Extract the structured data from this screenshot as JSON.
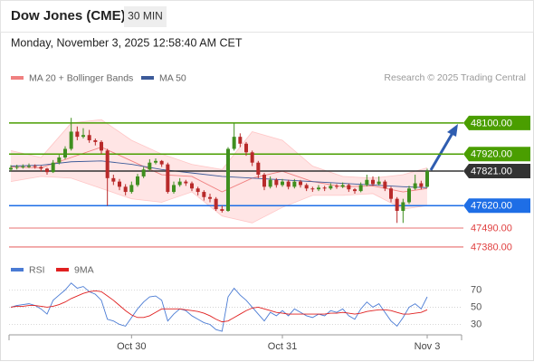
{
  "chart_data": {
    "type": "candlestick",
    "title": "Dow Jones (CME)",
    "timeframe": "30 MIN",
    "date": "Monday, November 3, 2025 12:58:40 AM CET",
    "legend": [
      {
        "name": "MA 20 + Bollinger Bands",
        "color": "#f08080"
      },
      {
        "name": "MA 50",
        "color": "#3c5a99"
      }
    ],
    "credit": "Research © 2025 Trading Central",
    "xlim": [
      -0.3,
      74.7
    ],
    "ylim": [
      47343,
      48210
    ],
    "xticks": [
      {
        "value": 20,
        "label": "Oct 30"
      },
      {
        "value": 45,
        "label": "Oct 31"
      },
      {
        "value": 69,
        "label": "Nov 3"
      }
    ],
    "levels": [
      {
        "value": 48100,
        "label": "48100.00",
        "color": "#4a9e00",
        "box": true
      },
      {
        "value": 47920,
        "label": "47920.00",
        "color": "#4a9e00",
        "box": true
      },
      {
        "value": 47821,
        "label": "47821.00",
        "color": "#333333",
        "box": true
      },
      {
        "value": 47620,
        "label": "47620.00",
        "color": "#1e6ee6",
        "box": true
      },
      {
        "value": 47490,
        "label": "47490.00",
        "color": "#e04040",
        "box": false
      },
      {
        "value": 47380,
        "label": "47380.00",
        "color": "#e04040",
        "box": false
      }
    ],
    "ohlc": [
      [
        47830,
        47855,
        47820,
        47840
      ],
      [
        47840,
        47858,
        47830,
        47845
      ],
      [
        47845,
        47860,
        47835,
        47848
      ],
      [
        47848,
        47865,
        47838,
        47850
      ],
      [
        47850,
        47860,
        47835,
        47845
      ],
      [
        47845,
        47852,
        47820,
        47835
      ],
      [
        47835,
        47840,
        47800,
        47815
      ],
      [
        47815,
        47885,
        47810,
        47870
      ],
      [
        47870,
        47915,
        47860,
        47900
      ],
      [
        47900,
        47965,
        47890,
        47950
      ],
      [
        47950,
        48130,
        47940,
        48050
      ],
      [
        48050,
        48080,
        48000,
        48020
      ],
      [
        48020,
        48070,
        48010,
        48030
      ],
      [
        48030,
        48060,
        47985,
        48000
      ],
      [
        48000,
        48010,
        47970,
        47990
      ],
      [
        47990,
        48000,
        47920,
        47940
      ],
      [
        47940,
        47950,
        47620,
        47780
      ],
      [
        47780,
        47800,
        47740,
        47760
      ],
      [
        47760,
        47775,
        47710,
        47730
      ],
      [
        47730,
        47745,
        47680,
        47700
      ],
      [
        47700,
        47760,
        47690,
        47740
      ],
      [
        47740,
        47805,
        47730,
        47790
      ],
      [
        47790,
        47845,
        47780,
        47830
      ],
      [
        47830,
        47890,
        47820,
        47870
      ],
      [
        47870,
        47895,
        47860,
        47880
      ],
      [
        47880,
        47885,
        47845,
        47860
      ],
      [
        47860,
        47870,
        47690,
        47700
      ],
      [
        47700,
        47760,
        47690,
        47740
      ],
      [
        47740,
        47780,
        47730,
        47760
      ],
      [
        47760,
        47770,
        47735,
        47750
      ],
      [
        47750,
        47760,
        47705,
        47720
      ],
      [
        47720,
        47730,
        47680,
        47700
      ],
      [
        47700,
        47710,
        47650,
        47670
      ],
      [
        47670,
        47690,
        47640,
        47660
      ],
      [
        47660,
        47670,
        47590,
        47600
      ],
      [
        47600,
        47620,
        47580,
        47590
      ],
      [
        47590,
        47960,
        47585,
        47950
      ],
      [
        47950,
        48100,
        47940,
        48020
      ],
      [
        48020,
        48040,
        47960,
        47980
      ],
      [
        47980,
        47990,
        47910,
        47930
      ],
      [
        47930,
        47940,
        47850,
        47870
      ],
      [
        47870,
        47880,
        47780,
        47800
      ],
      [
        47800,
        47810,
        47710,
        47730
      ],
      [
        47730,
        47790,
        47720,
        47770
      ],
      [
        47770,
        47780,
        47725,
        47740
      ],
      [
        47740,
        47775,
        47730,
        47760
      ],
      [
        47760,
        47770,
        47715,
        47730
      ],
      [
        47730,
        47775,
        47720,
        47760
      ],
      [
        47760,
        47770,
        47725,
        47740
      ],
      [
        47740,
        47750,
        47705,
        47720
      ],
      [
        47720,
        47730,
        47700,
        47715
      ],
      [
        47715,
        47740,
        47705,
        47725
      ],
      [
        47725,
        47735,
        47705,
        47720
      ],
      [
        47720,
        47750,
        47712,
        47735
      ],
      [
        47735,
        47745,
        47718,
        47730
      ],
      [
        47730,
        47755,
        47722,
        47740
      ],
      [
        47740,
        47748,
        47700,
        47715
      ],
      [
        47715,
        47722,
        47690,
        47705
      ],
      [
        47705,
        47755,
        47698,
        47740
      ],
      [
        47740,
        47800,
        47732,
        47770
      ],
      [
        47770,
        47790,
        47735,
        47745
      ],
      [
        47745,
        47790,
        47738,
        47760
      ],
      [
        47760,
        47770,
        47705,
        47720
      ],
      [
        47720,
        47730,
        47640,
        47660
      ],
      [
        47660,
        47670,
        47520,
        47590
      ],
      [
        47590,
        47660,
        47520,
        47640
      ],
      [
        47640,
        47735,
        47630,
        47720
      ],
      [
        47720,
        47800,
        47712,
        47750
      ],
      [
        47750,
        47765,
        47715,
        47730
      ],
      [
        47730,
        47835,
        47725,
        47821
      ]
    ],
    "band_x": [
      0,
      5,
      10,
      15,
      20,
      25,
      30,
      35,
      40,
      45,
      50,
      55,
      60,
      65,
      69
    ],
    "ma20": [
      47845,
      47840,
      47900,
      47960,
      47880,
      47800,
      47790,
      47700,
      47780,
      47820,
      47760,
      47730,
      47735,
      47700,
      47720
    ],
    "bb_upper": [
      47940,
      47900,
      48100,
      48120,
      48000,
      47920,
      47860,
      47830,
      48050,
      48000,
      47850,
      47790,
      47780,
      47800,
      47840
    ],
    "bb_lower": [
      47760,
      47790,
      47780,
      47720,
      47660,
      47640,
      47700,
      47560,
      47520,
      47610,
      47680,
      47680,
      47690,
      47600,
      47620
    ],
    "ma50": [
      47850,
      47855,
      47875,
      47880,
      47860,
      47830,
      47810,
      47790,
      47780,
      47770,
      47760,
      47750,
      47740,
      47730,
      47725
    ],
    "rsi_panel": {
      "ylim": [
        20,
        83
      ],
      "yticks": [
        70,
        50,
        30
      ],
      "series": [
        {
          "name": "RSI",
          "color": "#4a7bd4",
          "values": [
            50,
            52,
            53,
            54,
            52,
            48,
            42,
            58,
            64,
            70,
            78,
            72,
            74,
            68,
            65,
            58,
            36,
            34,
            30,
            28,
            38,
            48,
            56,
            62,
            63,
            58,
            34,
            42,
            48,
            46,
            40,
            36,
            32,
            30,
            24,
            22,
            62,
            72,
            64,
            58,
            50,
            42,
            34,
            44,
            40,
            46,
            40,
            48,
            44,
            40,
            38,
            42,
            40,
            46,
            44,
            48,
            40,
            36,
            48,
            56,
            50,
            54,
            44,
            34,
            28,
            38,
            50,
            54,
            48,
            62
          ]
        },
        {
          "name": "9MA",
          "color": "#e02020",
          "values": [
            50,
            51,
            51,
            52,
            52,
            51,
            50,
            51,
            53,
            56,
            60,
            63,
            66,
            68,
            69,
            68,
            63,
            58,
            52,
            46,
            41,
            38,
            38,
            40,
            44,
            48,
            48,
            48,
            48,
            47,
            46,
            45,
            43,
            40,
            36,
            33,
            34,
            38,
            42,
            46,
            49,
            50,
            48,
            46,
            44,
            43,
            42,
            42,
            42,
            42,
            42,
            42,
            42,
            43,
            43,
            44,
            43,
            42,
            43,
            45,
            46,
            47,
            47,
            46,
            44,
            42,
            42,
            43,
            44,
            47
          ]
        }
      ]
    }
  }
}
